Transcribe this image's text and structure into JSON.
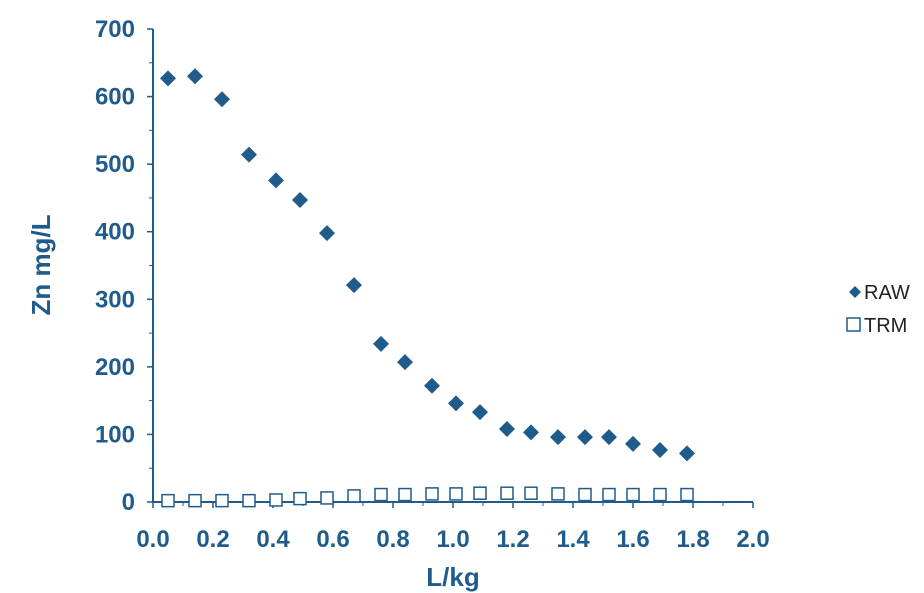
{
  "chart_data": {
    "type": "scatter",
    "title": "",
    "xlabel": "L/kg",
    "ylabel": "Zn mg/L",
    "xlim": [
      0.0,
      2.0
    ],
    "ylim": [
      0,
      700
    ],
    "x_ticks": [
      "0.0",
      "0.2",
      "0.4",
      "0.6",
      "0.8",
      "1.0",
      "1.2",
      "1.4",
      "1.6",
      "1.8",
      "2.0"
    ],
    "y_ticks": [
      "0",
      "100",
      "200",
      "300",
      "400",
      "500",
      "600",
      "700"
    ],
    "grid": false,
    "legend_position": "right",
    "colors": {
      "axis": "#1f5c8c",
      "raw": "#1f5c8c",
      "trm": "#1f5c8c"
    },
    "series": [
      {
        "name": "RAW",
        "marker": "diamond-filled",
        "x": [
          0.05,
          0.14,
          0.23,
          0.32,
          0.41,
          0.49,
          0.58,
          0.67,
          0.76,
          0.84,
          0.93,
          1.01,
          1.09,
          1.18,
          1.26,
          1.35,
          1.44,
          1.52,
          1.6,
          1.69,
          1.78
        ],
        "y": [
          627,
          630,
          596,
          514,
          476,
          447,
          398,
          321,
          234,
          207,
          172,
          146,
          133,
          108,
          103,
          96,
          96,
          96,
          86,
          77,
          72
        ]
      },
      {
        "name": "TRM",
        "marker": "square-open",
        "x": [
          0.05,
          0.14,
          0.23,
          0.32,
          0.41,
          0.49,
          0.58,
          0.67,
          0.76,
          0.84,
          0.93,
          1.01,
          1.09,
          1.18,
          1.26,
          1.35,
          1.44,
          1.52,
          1.6,
          1.69,
          1.78
        ],
        "y": [
          2,
          2,
          2,
          2,
          3,
          5,
          6,
          9,
          11,
          11,
          12,
          12,
          13,
          13,
          13,
          12,
          11,
          11,
          11,
          11,
          11
        ]
      }
    ]
  }
}
